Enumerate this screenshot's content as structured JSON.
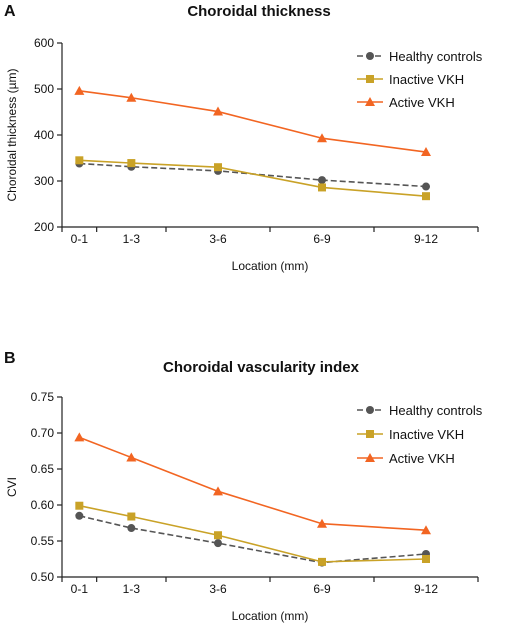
{
  "chart_data": [
    {
      "panel": "A",
      "type": "line",
      "title": "Choroidal thickness",
      "xlabel": "Location (mm)",
      "ylabel": "Choroidal thickness (µm)",
      "categories": [
        "0-1",
        "1-3",
        "3-6",
        "6-9",
        "9-12"
      ],
      "x": [
        0.5,
        2,
        4.5,
        7.5,
        10.5
      ],
      "xlim": [
        0,
        12
      ],
      "ylim": [
        200,
        600
      ],
      "yticks": [
        "200",
        "300",
        "400",
        "500",
        "600"
      ],
      "series": [
        {
          "name": "Healthy controls",
          "color": "#555555",
          "marker": "circle",
          "dash": true,
          "values": [
            338,
            331,
            322,
            302,
            288
          ]
        },
        {
          "name": "Inactive VKH",
          "color": "#c9a227",
          "marker": "square",
          "dash": false,
          "values": [
            345,
            339,
            330,
            286,
            267
          ]
        },
        {
          "name": "Active VKH",
          "color": "#f26522",
          "marker": "triangle",
          "dash": false,
          "values": [
            496,
            481,
            451,
            393,
            363
          ]
        }
      ],
      "legend": "top-right",
      "grid": false
    },
    {
      "panel": "B",
      "type": "line",
      "title": "Choroidal vascularity index",
      "xlabel": "Location (mm)",
      "ylabel": "CVI",
      "categories": [
        "0-1",
        "1-3",
        "3-6",
        "6-9",
        "9-12"
      ],
      "x": [
        0.5,
        2,
        4.5,
        7.5,
        10.5
      ],
      "xlim": [
        0,
        12
      ],
      "ylim": [
        0.5,
        0.75
      ],
      "yticks": [
        "0.50",
        "0.55",
        "0.60",
        "0.65",
        "0.70",
        "0.75"
      ],
      "series": [
        {
          "name": "Healthy controls",
          "color": "#555555",
          "marker": "circle",
          "dash": true,
          "values": [
            0.585,
            0.568,
            0.547,
            0.52,
            0.532
          ]
        },
        {
          "name": "Inactive VKH",
          "color": "#c9a227",
          "marker": "square",
          "dash": false,
          "values": [
            0.599,
            0.584,
            0.558,
            0.521,
            0.525
          ]
        },
        {
          "name": "Active VKH",
          "color": "#f26522",
          "marker": "triangle",
          "dash": false,
          "values": [
            0.694,
            0.666,
            0.619,
            0.574,
            0.565
          ]
        }
      ],
      "legend": "top-right",
      "grid": false
    }
  ]
}
